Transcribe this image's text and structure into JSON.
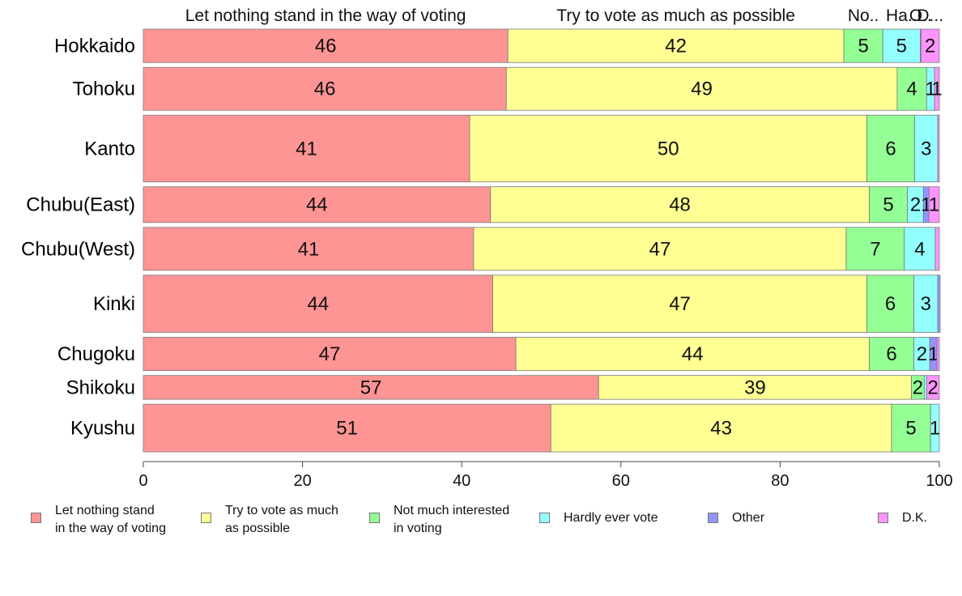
{
  "chart_data": {
    "type": "bar",
    "orientation": "horizontal",
    "stacked": true,
    "title": "",
    "xlabel": "",
    "ylabel": "",
    "xlim": [
      0,
      100
    ],
    "xticks": [
      0,
      20,
      40,
      60,
      80,
      100
    ],
    "grid": false,
    "legend_position": "bottom",
    "categories": [
      "Hokkaido",
      "Tohoku",
      "Kanto",
      "Chubu(East)",
      "Chubu(West)",
      "Kinki",
      "Chugoku",
      "Shikoku",
      "Kyushu"
    ],
    "relative_group_size": [
      0.7,
      0.9,
      1.4,
      0.75,
      0.9,
      1.2,
      0.7,
      0.5,
      1.0
    ],
    "series": [
      {
        "name": "Let nothing stand in the way of voting",
        "legend_label": "Let nothing stand\nin the way of voting",
        "top_label": "Let nothing stand in the way of voting",
        "color": "#FF9494",
        "values": [
          45.8,
          45.6,
          41.0,
          43.6,
          41.5,
          43.9,
          46.8,
          57.2,
          51.2
        ],
        "labels": [
          "46",
          "46",
          "41",
          "44",
          "41",
          "44",
          "47",
          "57",
          "51"
        ]
      },
      {
        "name": "Try to vote as much as possible",
        "legend_label": "Try to vote as much\nas possible",
        "top_label": "Try to vote as much as possible",
        "color": "#FFFF94",
        "values": [
          42.2,
          49.1,
          49.9,
          47.6,
          46.8,
          47.0,
          44.4,
          39.3,
          42.8
        ],
        "labels": [
          "42",
          "49",
          "50",
          "48",
          "47",
          "47",
          "44",
          "39",
          "43"
        ]
      },
      {
        "name": "Not much interested in voting",
        "legend_label": "Not much interested\nin voting",
        "top_label": "No..",
        "color": "#94FF94",
        "values": [
          4.9,
          3.7,
          6.0,
          4.8,
          7.3,
          5.9,
          5.6,
          1.6,
          4.9
        ],
        "labels": [
          "5",
          "4",
          "6",
          "5",
          "7",
          "6",
          "6",
          "2",
          "5"
        ]
      },
      {
        "name": "Hardly ever vote",
        "legend_label": "Hardly ever vote",
        "top_label": "Ha..",
        "color": "#94FFFF",
        "values": [
          4.7,
          1.0,
          2.9,
          2.0,
          3.9,
          3.0,
          2.0,
          0.3,
          1.1
        ],
        "labels": [
          "5",
          "1",
          "3",
          "2",
          "4",
          "3",
          "2",
          "",
          "1"
        ]
      },
      {
        "name": "Other",
        "legend_label": "Other",
        "top_label": "O..",
        "color": "#9494FF",
        "values": [
          0.1,
          0.0,
          0.0,
          0.7,
          0.0,
          0.3,
          0.9,
          0.0,
          0.0
        ],
        "labels": [
          "",
          "",
          "",
          "1",
          "",
          "",
          "1",
          "",
          ""
        ]
      },
      {
        "name": "D.K.",
        "legend_label": "D.K.",
        "top_label": "D...",
        "color": "#FF94FF",
        "values": [
          2.3,
          0.6,
          0.2,
          1.3,
          0.5,
          0.0,
          0.3,
          1.6,
          0.0
        ],
        "labels": [
          "2",
          "1",
          "",
          "1",
          "",
          "",
          "",
          "2",
          ""
        ]
      }
    ]
  }
}
